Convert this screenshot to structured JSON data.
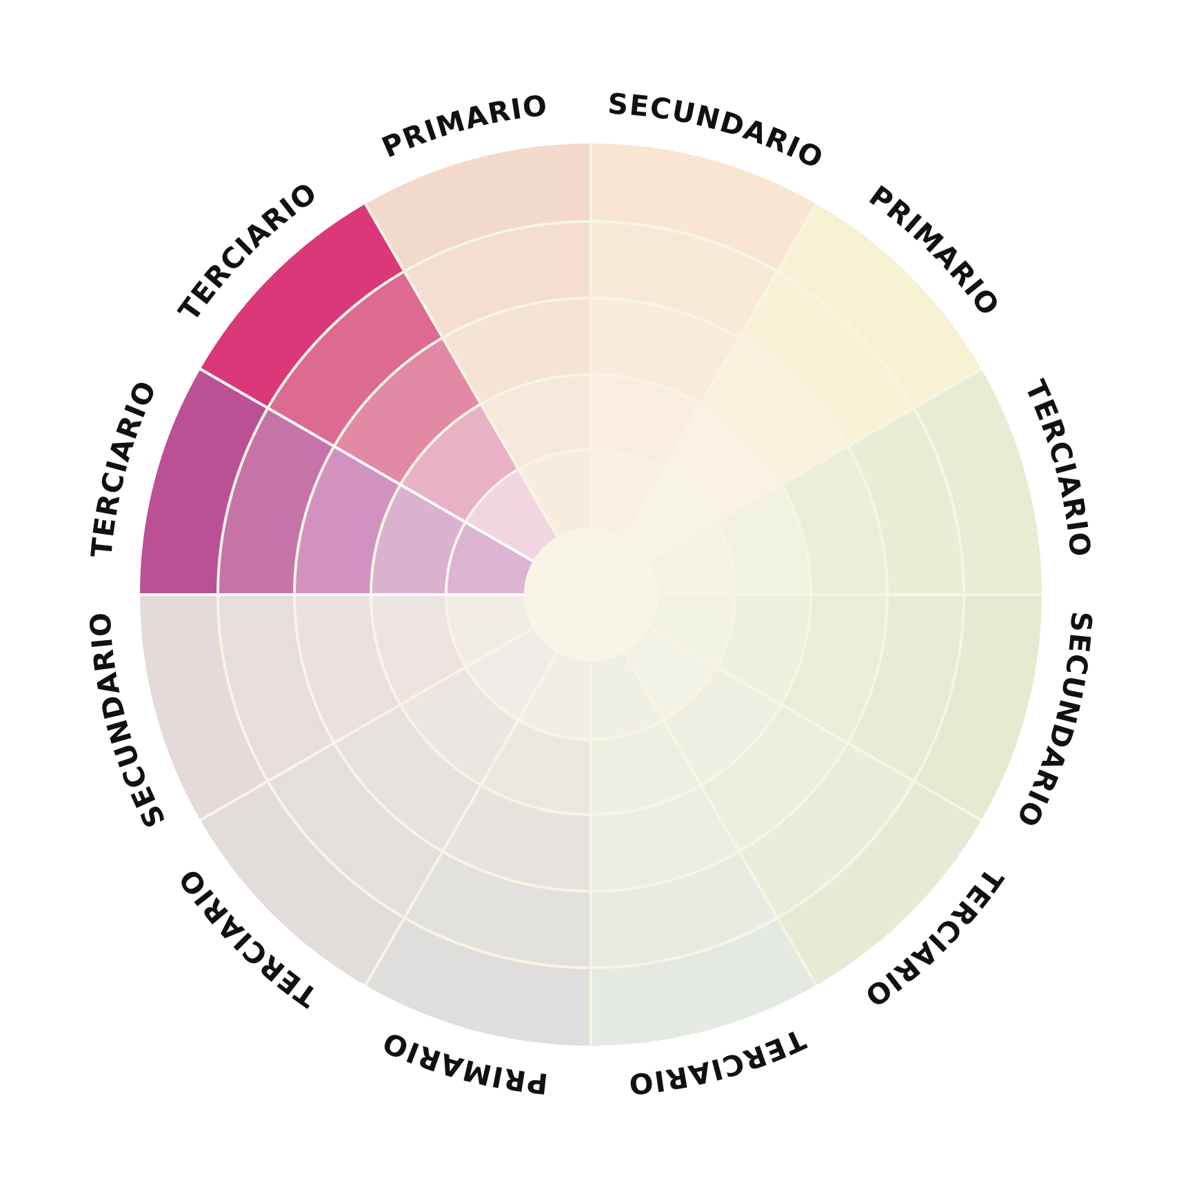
{
  "wheel": {
    "separator_color": "#f8f4e4",
    "center_color": "#f8f5e8",
    "sectors": [
      {
        "label": "SECUNDARIO",
        "colors": [
          "#f8f0e2",
          "#f8ede0",
          "#f8ebdc",
          "#f8e9d6",
          "#f8e6d2"
        ]
      },
      {
        "label": "PRIMARIO",
        "colors": [
          "#f8f4e6",
          "#f8f3e2",
          "#f8f2dc",
          "#f8f1d6",
          "#f8f0d2"
        ]
      },
      {
        "label": "TERCIARIO",
        "colors": [
          "#f4f3e2",
          "#f0f1de",
          "#ecefd8",
          "#e9edd4",
          "#e7ecd2"
        ]
      },
      {
        "label": "SECUNDARIO",
        "colors": [
          "#f2f2e4",
          "#eef0de",
          "#eaeed8",
          "#e7ecd4",
          "#e5ebd0"
        ]
      },
      {
        "label": "TERCIARIO",
        "colors": [
          "#f2f1e6",
          "#eeefe2",
          "#eaeede",
          "#e8ecda",
          "#e6ebd6"
        ]
      },
      {
        "label": "TERCIARIO",
        "colors": [
          "#f0efe4",
          "#edeee2",
          "#eaede2",
          "#e7ebe2",
          "#e4e9e2"
        ]
      },
      {
        "label": "PRIMARIO",
        "colors": [
          "#f0ede6",
          "#ebe8e2",
          "#e7e4e0",
          "#e3e1de",
          "#e0dedc"
        ]
      },
      {
        "label": "TERCIARIO",
        "colors": [
          "#f0ebe6",
          "#ebe6e2",
          "#e7e1df",
          "#e4dedd",
          "#e2dcdb"
        ]
      },
      {
        "label": "SECUNDARIO",
        "colors": [
          "#f1ebe6",
          "#ede4e2",
          "#e9e0df",
          "#e6dddd",
          "#e4dada"
        ]
      },
      {
        "label": "TERCIARIO",
        "colors": [
          "#dcb4d2",
          "#dab2cf",
          "#d292bf",
          "#c674a8",
          "#bc5094"
        ]
      },
      {
        "label": "TERCIARIO",
        "colors": [
          "#f1d6e2",
          "#e9b1c6",
          "#e289a5",
          "#dd6a92",
          "#da3878"
        ]
      },
      {
        "label": "PRIMARIO",
        "colors": [
          "#f6ecdf",
          "#f6e8db",
          "#f5e3d6",
          "#f3ded1",
          "#f2d9cc"
        ]
      }
    ]
  }
}
